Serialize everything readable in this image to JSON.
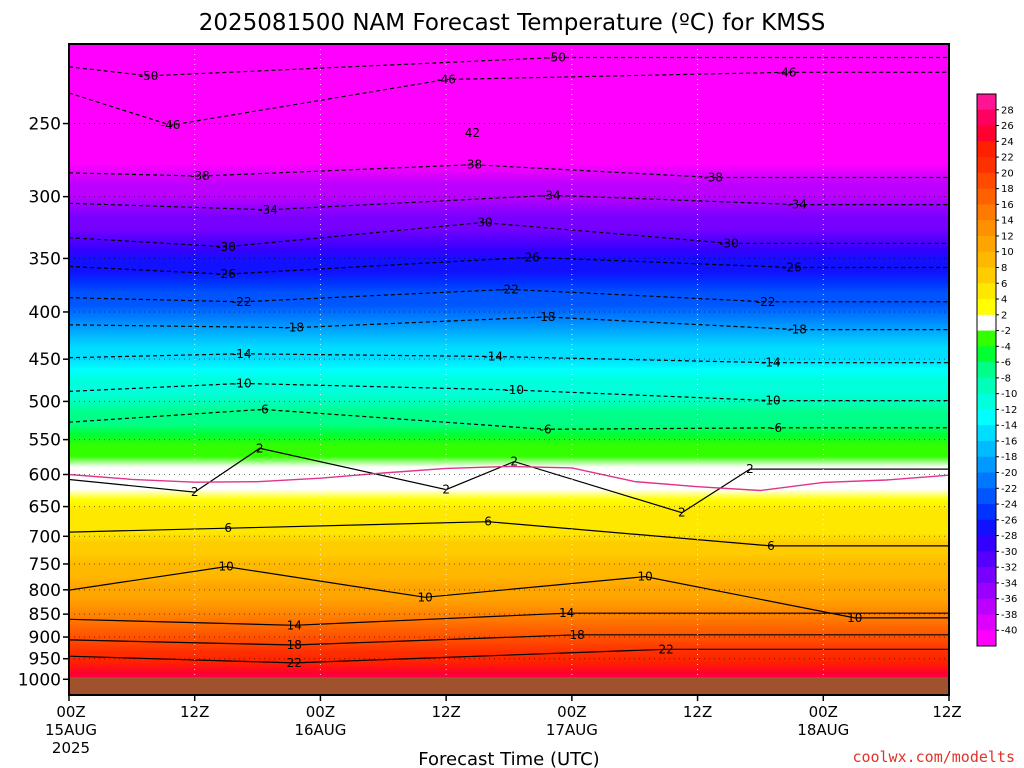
{
  "page": {
    "title": "2025081500 NAM Forecast Temperature (ºC) for KMSS",
    "credit": "coolwx.com/modelts",
    "colors": {
      "background": "#ffffff",
      "ground": "#a0522d",
      "freezing_line": "#e0338a",
      "contour": "#000000",
      "credit": "#e0332a"
    }
  },
  "chart_data": {
    "type": "heatmap",
    "title": "2025081500 NAM Forecast Temperature (ºC) for KMSS",
    "xlabel": "Forecast Time (UTC)",
    "ylabel": "",
    "x_range_hours": [
      0,
      84
    ],
    "y_scale": "log",
    "ylim": [
      1040,
      205
    ],
    "y_ticks": [
      250,
      300,
      350,
      400,
      450,
      500,
      550,
      600,
      650,
      700,
      750,
      800,
      850,
      900,
      950,
      1000
    ],
    "x_ticks": [
      {
        "hour": 0,
        "lines": [
          "00Z",
          "15AUG",
          "2025"
        ]
      },
      {
        "hour": 12,
        "lines": [
          "12Z"
        ]
      },
      {
        "hour": 24,
        "lines": [
          "00Z",
          "16AUG"
        ]
      },
      {
        "hour": 36,
        "lines": [
          "12Z"
        ]
      },
      {
        "hour": 48,
        "lines": [
          "00Z",
          "17AUG"
        ]
      },
      {
        "hour": 60,
        "lines": [
          "12Z"
        ]
      },
      {
        "hour": 72,
        "lines": [
          "00Z",
          "18AUG"
        ]
      },
      {
        "hour": 84,
        "lines": [
          "12Z"
        ]
      }
    ],
    "colorbar": {
      "labels": [
        "28",
        "26",
        "24",
        "22",
        "20",
        "18",
        "16",
        "14",
        "12",
        "10",
        "8",
        "6",
        "4",
        "2",
        "-2",
        "-4",
        "-6",
        "-8",
        "-10",
        "-12",
        "-14",
        "-16",
        "-18",
        "-20",
        "-22",
        "-24",
        "-26",
        "-28",
        "-30",
        "-32",
        "-34",
        "-36",
        "-38",
        "-40"
      ],
      "colors": [
        "#ff1493",
        "#ff0060",
        "#ff0030",
        "#ff2000",
        "#ff3000",
        "#ff4a00",
        "#ff6000",
        "#ff7a00",
        "#ff9000",
        "#ffa500",
        "#ffb800",
        "#ffcc00",
        "#ffe800",
        "#ffff00",
        "#ffffff",
        "#33ff00",
        "#00ff33",
        "#00ff88",
        "#00ffbb",
        "#00ffdd",
        "#00ffff",
        "#00ddff",
        "#00bbff",
        "#0099ff",
        "#0077ff",
        "#0055ff",
        "#0033ff",
        "#1111ff",
        "#3300ff",
        "#5500ff",
        "#7700ff",
        "#9900ff",
        "#bb00ff",
        "#dd00ff",
        "#ff00ff"
      ]
    },
    "temperature_profile_c": [
      {
        "p": 1000,
        "t": 26
      },
      {
        "p": 950,
        "t": 22
      },
      {
        "p": 900,
        "t": 18
      },
      {
        "p": 850,
        "t": 14
      },
      {
        "p": 800,
        "t": 11
      },
      {
        "p": 750,
        "t": 9
      },
      {
        "p": 700,
        "t": 6
      },
      {
        "p": 650,
        "t": 4
      },
      {
        "p": 600,
        "t": 0
      },
      {
        "p": 550,
        "t": -4
      },
      {
        "p": 500,
        "t": -9
      },
      {
        "p": 450,
        "t": -14
      },
      {
        "p": 400,
        "t": -21
      },
      {
        "p": 350,
        "t": -28
      },
      {
        "p": 300,
        "t": -36
      },
      {
        "p": 250,
        "t": -45
      },
      {
        "p": 210,
        "t": -52
      }
    ],
    "contour_labels": [
      {
        "text": "-50",
        "hour": 7.6,
        "p": 222
      },
      {
        "text": "-50",
        "hour": 46.5,
        "p": 212
      },
      {
        "text": "-46",
        "hour": 9.7,
        "p": 251
      },
      {
        "text": "-46",
        "hour": 36,
        "p": 224
      },
      {
        "text": "-46",
        "hour": 68.5,
        "p": 220
      },
      {
        "text": "42",
        "hour": 38.5,
        "p": 256
      },
      {
        "text": "-38",
        "hour": 12.5,
        "p": 285
      },
      {
        "text": "-38",
        "hour": 38.5,
        "p": 277
      },
      {
        "text": "-38",
        "hour": 61.5,
        "p": 286
      },
      {
        "text": "-34",
        "hour": 19,
        "p": 310
      },
      {
        "text": "-34",
        "hour": 46,
        "p": 299
      },
      {
        "text": "-34",
        "hour": 69.5,
        "p": 306
      },
      {
        "text": "-30",
        "hour": 15,
        "p": 340
      },
      {
        "text": "-30",
        "hour": 39.5,
        "p": 320
      },
      {
        "text": "-30",
        "hour": 63,
        "p": 337
      },
      {
        "text": "-26",
        "hour": 15,
        "p": 364
      },
      {
        "text": "-26",
        "hour": 44,
        "p": 349
      },
      {
        "text": "-26",
        "hour": 69,
        "p": 358
      },
      {
        "text": "-22",
        "hour": 16.5,
        "p": 390
      },
      {
        "text": "-22",
        "hour": 42,
        "p": 378
      },
      {
        "text": "-22",
        "hour": 66.5,
        "p": 390
      },
      {
        "text": "-18",
        "hour": 21.5,
        "p": 416
      },
      {
        "text": "-18",
        "hour": 45.5,
        "p": 405
      },
      {
        "text": "-18",
        "hour": 69.5,
        "p": 418
      },
      {
        "text": "-14",
        "hour": 16.5,
        "p": 444
      },
      {
        "text": "-14",
        "hour": 40.5,
        "p": 447
      },
      {
        "text": "-14",
        "hour": 67,
        "p": 454
      },
      {
        "text": "-10",
        "hour": 16.5,
        "p": 478
      },
      {
        "text": "-10",
        "hour": 42.5,
        "p": 486
      },
      {
        "text": "-10",
        "hour": 67,
        "p": 499
      },
      {
        "text": "-6",
        "hour": 18.5,
        "p": 510
      },
      {
        "text": "-6",
        "hour": 45.5,
        "p": 536
      },
      {
        "text": "-6",
        "hour": 67.5,
        "p": 534
      },
      {
        "text": "2",
        "hour": 18.2,
        "p": 562
      },
      {
        "text": "2",
        "hour": 42.5,
        "p": 581
      },
      {
        "text": "2",
        "hour": 65,
        "p": 592
      },
      {
        "text": "2",
        "hour": 12,
        "p": 627
      },
      {
        "text": "2",
        "hour": 36,
        "p": 623
      },
      {
        "text": "2",
        "hour": 58.5,
        "p": 660
      },
      {
        "text": "6",
        "hour": 15.2,
        "p": 686
      },
      {
        "text": "6",
        "hour": 40,
        "p": 675
      },
      {
        "text": "6",
        "hour": 67,
        "p": 717
      },
      {
        "text": "10",
        "hour": 15,
        "p": 755
      },
      {
        "text": "10",
        "hour": 34,
        "p": 815
      },
      {
        "text": "10",
        "hour": 55,
        "p": 774
      },
      {
        "text": "10",
        "hour": 75,
        "p": 858
      },
      {
        "text": "14",
        "hour": 21.5,
        "p": 874
      },
      {
        "text": "14",
        "hour": 47.5,
        "p": 848
      },
      {
        "text": "18",
        "hour": 21.5,
        "p": 918
      },
      {
        "text": "18",
        "hour": 48.5,
        "p": 895
      },
      {
        "text": "22",
        "hour": 21.5,
        "p": 960
      },
      {
        "text": "22",
        "hour": 57,
        "p": 928
      }
    ],
    "grid": true,
    "legend": "right"
  }
}
